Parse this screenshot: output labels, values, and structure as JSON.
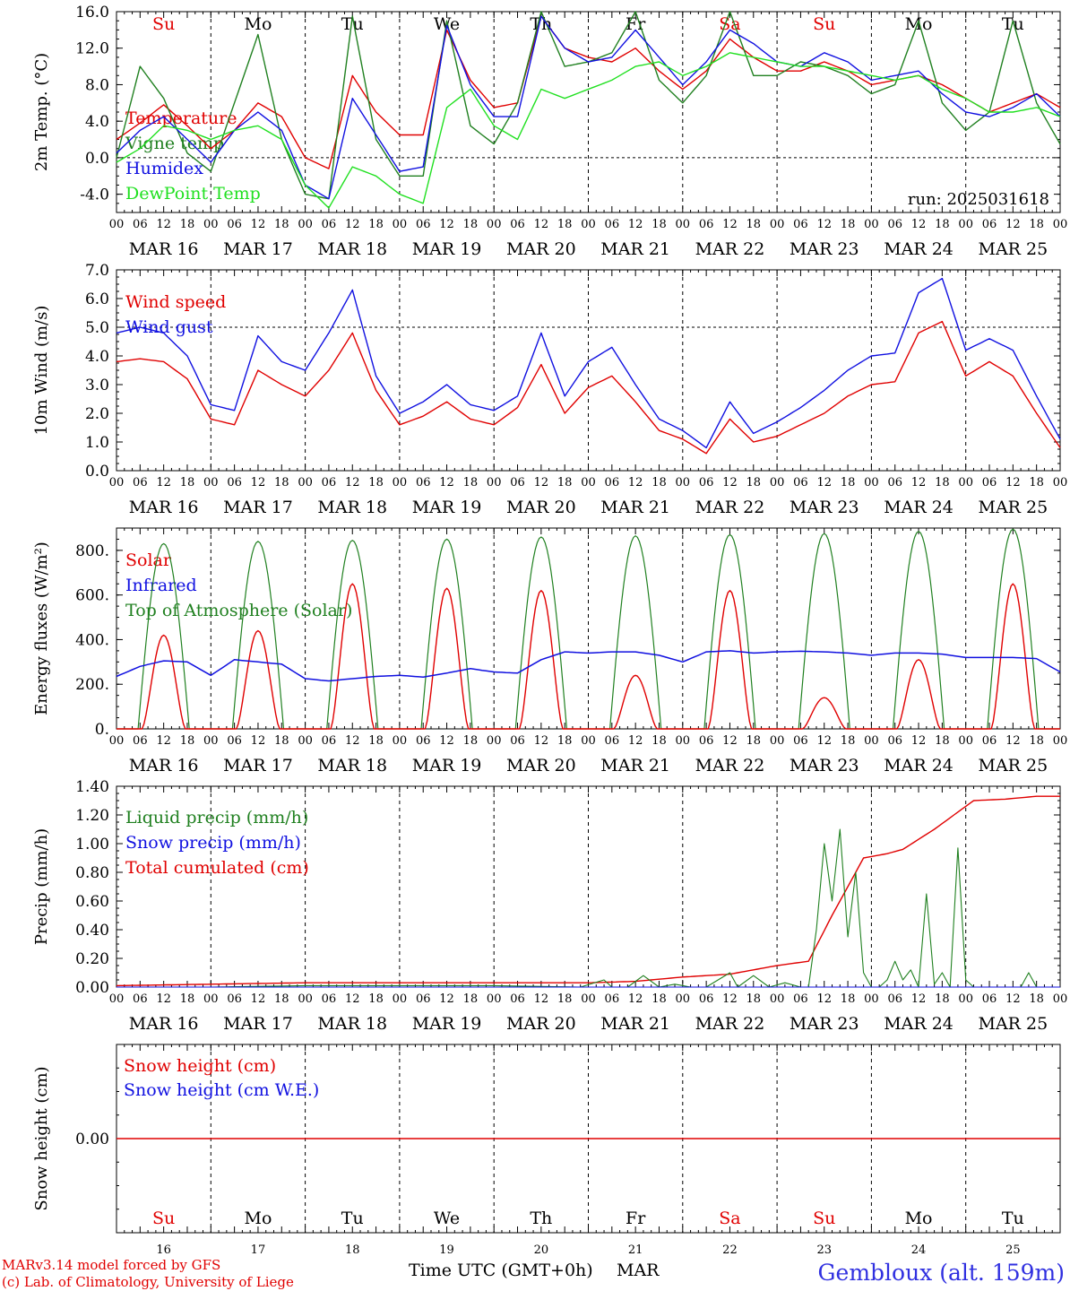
{
  "colors": {
    "temperature": "#e00000",
    "vigne": "#208020",
    "humidex": "#1010e0",
    "dewpoint": "#20e020",
    "wind_speed": "#e00000",
    "wind_gust": "#1010e0",
    "solar": "#e00000",
    "infrared": "#1010e0",
    "toa": "#208020",
    "liquid": "#208020",
    "snow_precip": "#1010e0",
    "cumulated": "#e00000",
    "snow_height": "#e00000",
    "snow_we": "#1010e0",
    "weekend_day": "#e00000",
    "weekday": "#000000",
    "footer": "#e00000",
    "station": "#3030e0"
  },
  "days": {
    "abbrev": [
      "Su",
      "Mo",
      "Tu",
      "We",
      "Th",
      "Fr",
      "Sa",
      "Su",
      "Mo",
      "Tu"
    ],
    "weekend": [
      true,
      false,
      false,
      false,
      false,
      false,
      true,
      true,
      false,
      false
    ],
    "dates": [
      "MAR 16",
      "MAR 17",
      "MAR 18",
      "MAR 19",
      "MAR 20",
      "MAR 21",
      "MAR 22",
      "MAR 23",
      "MAR 24",
      "MAR 25"
    ],
    "numbers": [
      "16",
      "17",
      "18",
      "19",
      "20",
      "21",
      "22",
      "23",
      "24",
      "25"
    ],
    "hour_ticks": [
      "00",
      "06",
      "12",
      "18"
    ],
    "end_hour": "00"
  },
  "footer": {
    "model": "MARv3.14 model forced by GFS",
    "lab": "(c) Lab. of Climatology, University of Liege",
    "xlabel": "Time UTC (GMT+0h)",
    "month": "MAR",
    "station": "Gembloux (alt. 159m)"
  },
  "chart_data": [
    {
      "type": "line",
      "id": "temp",
      "ylabel": "2m Temp. (°C)",
      "ylim": [
        -6,
        16
      ],
      "yticks": [
        "16.0",
        "12.0",
        "8.0",
        "4.0",
        "0.0",
        "-4.0"
      ],
      "ytick_values": [
        16,
        12,
        8,
        4,
        0,
        -4
      ],
      "hline": 0,
      "annotation": "run: 2025031618",
      "legend": [
        "Temperature",
        "Vigne temp",
        "Humidex",
        "DewPoint Temp"
      ],
      "x": [
        0,
        6,
        12,
        18,
        24,
        30,
        36,
        42,
        48,
        54,
        60,
        66,
        72,
        78,
        84,
        90,
        96,
        102,
        108,
        114,
        120,
        126,
        132,
        138,
        144,
        150,
        156,
        162,
        168,
        174,
        180,
        186,
        192,
        198,
        204,
        210,
        216,
        222,
        228,
        234,
        240
      ],
      "series": [
        {
          "name": "Temperature",
          "color_key": "temperature",
          "values": [
            2.0,
            3.8,
            5.8,
            3.5,
            1.0,
            3.0,
            6.0,
            4.5,
            0.0,
            -1.2,
            9.0,
            5.0,
            2.5,
            2.5,
            14.0,
            8.5,
            5.5,
            6.0,
            15.5,
            12.0,
            11.0,
            10.5,
            12.0,
            9.5,
            7.5,
            9.5,
            13.0,
            11.0,
            9.5,
            9.5,
            10.5,
            9.5,
            8.0,
            8.5,
            9.0,
            8.0,
            6.5,
            5.0,
            6.0,
            7.0,
            5.5
          ]
        },
        {
          "name": "Vigne temp",
          "color_key": "vigne",
          "values": [
            0.0,
            10.0,
            6.5,
            0.5,
            -1.5,
            6.0,
            13.5,
            2.0,
            -4.0,
            -4.5,
            15.5,
            2.0,
            -2.0,
            -2.0,
            15.0,
            3.5,
            1.5,
            6.0,
            16.0,
            10.0,
            10.5,
            11.5,
            16.0,
            8.5,
            6.0,
            9.0,
            16.0,
            9.0,
            9.0,
            10.5,
            10.0,
            9.0,
            7.0,
            8.0,
            15.0,
            6.0,
            3.0,
            5.0,
            15.0,
            6.0,
            1.5
          ]
        },
        {
          "name": "Humidex",
          "color_key": "humidex",
          "values": [
            0.5,
            3.0,
            4.5,
            2.0,
            -0.5,
            3.0,
            5.0,
            3.0,
            -3.0,
            -4.5,
            6.5,
            2.5,
            -1.5,
            -1.0,
            14.5,
            8.0,
            4.5,
            4.5,
            15.5,
            12.0,
            10.5,
            11.0,
            14.0,
            11.0,
            8.0,
            10.5,
            14.0,
            12.5,
            10.5,
            10.0,
            11.5,
            10.5,
            8.5,
            9.0,
            9.5,
            7.0,
            5.0,
            4.5,
            5.5,
            7.0,
            4.5
          ]
        },
        {
          "name": "DewPoint Temp",
          "color_key": "dewpoint",
          "values": [
            -0.5,
            1.0,
            3.5,
            3.0,
            2.0,
            3.0,
            3.5,
            2.0,
            -3.0,
            -5.5,
            -1.0,
            -2.0,
            -4.0,
            -5.0,
            5.5,
            7.5,
            3.5,
            2.0,
            7.5,
            6.5,
            7.5,
            8.5,
            10.0,
            10.5,
            9.0,
            10.0,
            11.5,
            11.0,
            10.5,
            10.0,
            10.0,
            9.5,
            9.0,
            8.5,
            9.0,
            7.5,
            6.5,
            5.0,
            5.0,
            5.5,
            4.5
          ]
        }
      ]
    },
    {
      "type": "line",
      "id": "wind",
      "ylabel": "10m Wind (m/s)",
      "ylim": [
        0,
        7
      ],
      "yticks": [
        "7.0",
        "6.0",
        "5.0",
        "4.0",
        "3.0",
        "2.0",
        "1.0",
        "0.0"
      ],
      "ytick_values": [
        7,
        6,
        5,
        4,
        3,
        2,
        1,
        0
      ],
      "hline": 5,
      "legend": [
        "Wind speed",
        "Wind gust"
      ],
      "x": [
        0,
        6,
        12,
        18,
        24,
        30,
        36,
        42,
        48,
        54,
        60,
        66,
        72,
        78,
        84,
        90,
        96,
        102,
        108,
        114,
        120,
        126,
        132,
        138,
        144,
        150,
        156,
        162,
        168,
        174,
        180,
        186,
        192,
        198,
        204,
        210,
        216,
        222,
        228,
        234,
        240
      ],
      "series": [
        {
          "name": "Wind speed",
          "color_key": "wind_speed",
          "values": [
            3.8,
            3.9,
            3.8,
            3.2,
            1.8,
            1.6,
            3.5,
            3.0,
            2.6,
            3.5,
            4.8,
            2.8,
            1.6,
            1.9,
            2.4,
            1.8,
            1.6,
            2.2,
            3.7,
            2.0,
            2.9,
            3.3,
            2.4,
            1.4,
            1.1,
            0.6,
            1.8,
            1.0,
            1.2,
            1.6,
            2.0,
            2.6,
            3.0,
            3.1,
            4.8,
            5.2,
            3.3,
            3.8,
            3.3,
            2.0,
            0.8
          ]
        },
        {
          "name": "Wind gust",
          "color_key": "wind_gust",
          "values": [
            4.8,
            5.0,
            4.8,
            4.0,
            2.3,
            2.1,
            4.7,
            3.8,
            3.5,
            4.8,
            6.3,
            3.3,
            2.0,
            2.4,
            3.0,
            2.3,
            2.1,
            2.6,
            4.8,
            2.6,
            3.8,
            4.3,
            3.0,
            1.8,
            1.4,
            0.8,
            2.4,
            1.3,
            1.7,
            2.2,
            2.8,
            3.5,
            4.0,
            4.1,
            6.2,
            6.7,
            4.2,
            4.6,
            4.2,
            2.6,
            1.1
          ]
        }
      ]
    },
    {
      "type": "line",
      "id": "energy",
      "ylabel": "Energy fluxes (W/m²)",
      "ylim": [
        0,
        900
      ],
      "yticks": [
        "800.",
        "600.",
        "400.",
        "200.",
        "0."
      ],
      "ytick_values": [
        800,
        600,
        400,
        200,
        0
      ],
      "legend": [
        "Solar",
        "Infrared",
        "Top of Atmosphere (Solar)"
      ],
      "solar_peaks": [
        420,
        440,
        650,
        630,
        620,
        240,
        620,
        140,
        310,
        650
      ],
      "toa_peaks": [
        830,
        840,
        845,
        850,
        860,
        865,
        870,
        875,
        885,
        895
      ],
      "infrared": {
        "x": [
          0,
          6,
          12,
          18,
          24,
          30,
          36,
          42,
          48,
          54,
          60,
          66,
          72,
          78,
          84,
          90,
          96,
          102,
          108,
          114,
          120,
          126,
          132,
          138,
          144,
          150,
          156,
          162,
          168,
          174,
          180,
          186,
          192,
          198,
          204,
          210,
          216,
          222,
          228,
          234,
          240
        ],
        "values": [
          235,
          280,
          305,
          300,
          240,
          310,
          300,
          290,
          225,
          215,
          225,
          235,
          240,
          232,
          250,
          270,
          255,
          250,
          310,
          345,
          340,
          345,
          345,
          330,
          300,
          345,
          350,
          340,
          345,
          348,
          345,
          340,
          330,
          340,
          340,
          335,
          320,
          320,
          320,
          315,
          255
        ]
      }
    },
    {
      "type": "line",
      "id": "precip",
      "ylabel": "Precip (mm/h)",
      "ylim": [
        0,
        1.4
      ],
      "yticks": [
        "1.40",
        "1.20",
        "1.00",
        "0.80",
        "0.60",
        "0.40",
        "0.20",
        "0.00"
      ],
      "ytick_values": [
        1.4,
        1.2,
        1.0,
        0.8,
        0.6,
        0.4,
        0.2,
        0.0
      ],
      "legend": [
        "Liquid precip (mm/h)",
        "Snow precip (mm/h)",
        "Total cumulated (cm)"
      ],
      "x": [
        0,
        24,
        48,
        72,
        96,
        120,
        132,
        144,
        156,
        162,
        168,
        176,
        182,
        190,
        196,
        200,
        208,
        218,
        226,
        234,
        240
      ],
      "series": [
        {
          "name": "Total cumulated (cm)",
          "color_key": "cumulated",
          "values": [
            0.01,
            0.02,
            0.03,
            0.03,
            0.03,
            0.03,
            0.04,
            0.07,
            0.09,
            0.12,
            0.15,
            0.18,
            0.5,
            0.9,
            0.93,
            0.96,
            1.1,
            1.3,
            1.31,
            1.33,
            1.33
          ]
        }
      ],
      "liquid": {
        "x": [
          0,
          24,
          48,
          96,
          118,
          124,
          126,
          130,
          134,
          138,
          142,
          146,
          150,
          156,
          158,
          162,
          166,
          170,
          174,
          176,
          178,
          180,
          182,
          184,
          186,
          188,
          190,
          192,
          194,
          196,
          198,
          200,
          202,
          204,
          206,
          208,
          210,
          212,
          214,
          216,
          218,
          222,
          230,
          232,
          234,
          240
        ],
        "values": [
          0.0,
          0.0,
          0.01,
          0.01,
          0.0,
          0.05,
          0.0,
          0.0,
          0.08,
          0.0,
          0.02,
          0.0,
          0.0,
          0.1,
          0.0,
          0.08,
          0.0,
          0.03,
          0.0,
          0.0,
          0.4,
          1.0,
          0.6,
          1.1,
          0.35,
          0.8,
          0.1,
          0.0,
          0.0,
          0.05,
          0.18,
          0.05,
          0.12,
          0.0,
          0.65,
          0.02,
          0.1,
          0.0,
          0.97,
          0.05,
          0.0,
          0.0,
          0.0,
          0.1,
          0.0,
          0.0
        ]
      }
    },
    {
      "type": "line",
      "id": "snow",
      "ylabel": "Snow height (cm)",
      "ylim": [
        -1,
        1
      ],
      "yticks": [
        "0.00"
      ],
      "ytick_values": [
        0
      ],
      "legend": [
        "Snow height (cm)",
        "Snow height (cm W.E.)"
      ],
      "x": [
        0,
        240
      ],
      "series": [
        {
          "name": "Snow height (cm)",
          "color_key": "snow_height",
          "values": [
            0,
            0
          ]
        }
      ]
    }
  ]
}
